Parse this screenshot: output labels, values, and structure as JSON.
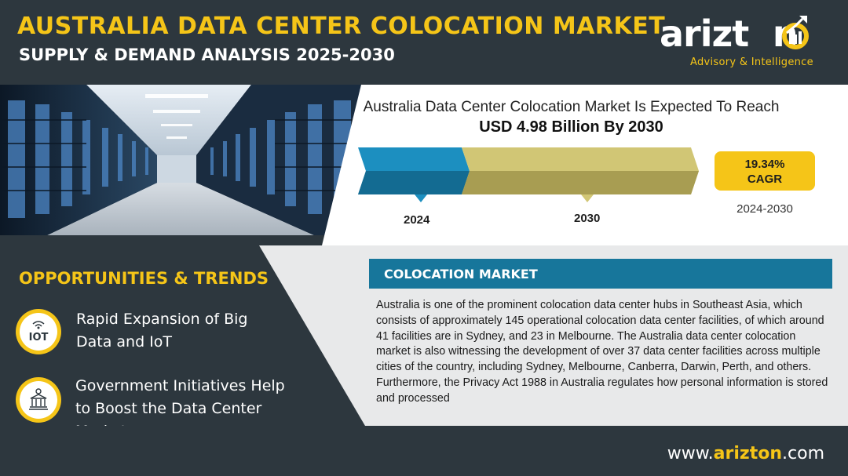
{
  "header": {
    "title_line1": "AUSTRALIA DATA CENTER COLOCATION MARKET",
    "title_line2": "SUPPLY & DEMAND ANALYSIS 2025-2030"
  },
  "logo": {
    "name": "arizton",
    "tagline": "Advisory & Intelligence",
    "icon": "rising-chart-icon"
  },
  "market_stat": {
    "headline": "Australia Data Center Colocation Market Is Expected To Reach",
    "value": "USD 4.98 Billion By 2030",
    "start_year": "2024",
    "end_year": "2030",
    "cagr_value": "19.34%",
    "cagr_label": "CAGR",
    "cagr_period": "2024-2030",
    "colors": {
      "start_bar": "#1c8fc0",
      "end_bar": "#d1c675",
      "cagr_box": "#f5c518"
    }
  },
  "opportunities": {
    "title": "OPPORTUNITIES & TRENDS",
    "items": [
      {
        "icon": "iot-icon",
        "icon_label": "IOT",
        "text_line1": "Rapid Expansion of Big",
        "text_line2": "Data and IoT"
      },
      {
        "icon": "government-building-icon",
        "text_line1": "Government Initiatives Help",
        "text_line2": "to Boost the Data Center",
        "text_line3": "Market"
      }
    ]
  },
  "colocation": {
    "title": "COLOCATION MARKET",
    "body": "Australia is one of the prominent colocation data center hubs in Southeast Asia, which consists of approximately 145 operational colocation data center facilities, of which around 41 facilities are in Sydney, and 23 in Melbourne. The Australia data center colocation market is also witnessing the development of over 37 data center facilities across multiple cities of the country, including Sydney, Melbourne, Canberra, Darwin, Perth, and others. Furthermore, the Privacy Act 1988 in Australia regulates how personal information is stored and processed"
  },
  "footer": {
    "url_prefix": "www.",
    "url_brand": "arizton",
    "url_suffix": ".com"
  },
  "colors": {
    "accent": "#f5c518",
    "dark": "#2d373e",
    "blue": "#17769b"
  }
}
